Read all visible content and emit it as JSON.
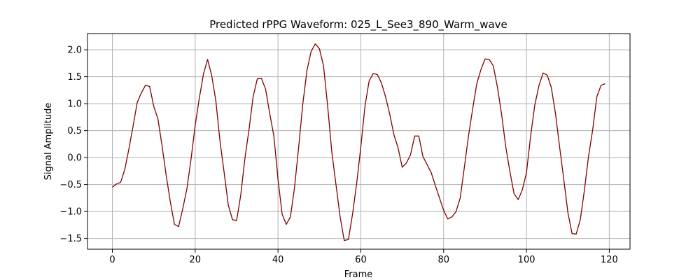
{
  "chart_data": {
    "type": "line",
    "title": "Predicted rPPG Waveform: 025_L_See3_890_Warm_wave",
    "xlabel": "Frame",
    "ylabel": "Signal Amplitude",
    "xlim": [
      -6,
      125
    ],
    "ylim": [
      -1.7,
      2.3
    ],
    "xticks": [
      0,
      20,
      40,
      60,
      80,
      100,
      120
    ],
    "yticks": [
      -1.5,
      -1.0,
      -0.5,
      0.0,
      0.5,
      1.0,
      1.5,
      2.0
    ],
    "xtick_labels": [
      "0",
      "20",
      "40",
      "60",
      "80",
      "100",
      "120"
    ],
    "ytick_labels": [
      "−1.5",
      "−1.0",
      "−0.5",
      "0.0",
      "0.5",
      "1.0",
      "1.5",
      "2.0"
    ],
    "grid": true,
    "line_color": "#800000",
    "series": [
      {
        "name": "",
        "x": [
          0,
          1,
          2,
          3,
          4,
          5,
          6,
          7,
          8,
          9,
          10,
          11,
          12,
          13,
          14,
          15,
          16,
          17,
          18,
          19,
          20,
          21,
          22,
          23,
          24,
          25,
          26,
          27,
          28,
          29,
          30,
          31,
          32,
          33,
          34,
          35,
          36,
          37,
          38,
          39,
          40,
          41,
          42,
          43,
          44,
          45,
          46,
          47,
          48,
          49,
          50,
          51,
          52,
          53,
          54,
          55,
          56,
          57,
          58,
          59,
          60,
          61,
          62,
          63,
          64,
          65,
          66,
          67,
          68,
          69,
          70,
          71,
          72,
          73,
          74,
          75,
          76,
          77,
          78,
          79,
          80,
          81,
          82,
          83,
          84,
          85,
          86,
          87,
          88,
          89,
          90,
          91,
          92,
          93,
          94,
          95,
          96,
          97,
          98,
          99,
          100,
          101,
          102,
          103,
          104,
          105,
          106,
          107,
          108,
          109,
          110,
          111,
          112,
          113,
          114,
          115,
          116,
          117,
          118,
          119
        ],
        "values": [
          -0.55,
          -0.49,
          -0.46,
          -0.22,
          0.16,
          0.58,
          1.02,
          1.2,
          1.34,
          1.32,
          0.95,
          0.72,
          0.22,
          -0.33,
          -0.82,
          -1.24,
          -1.28,
          -0.95,
          -0.58,
          -0.03,
          0.6,
          1.1,
          1.55,
          1.82,
          1.52,
          1.05,
          0.3,
          -0.28,
          -0.88,
          -1.15,
          -1.17,
          -0.7,
          -0.02,
          0.52,
          1.13,
          1.46,
          1.47,
          1.27,
          0.82,
          0.4,
          -0.4,
          -1.05,
          -1.24,
          -1.1,
          -0.55,
          0.2,
          1.0,
          1.62,
          1.97,
          2.11,
          2.02,
          1.7,
          0.95,
          0.1,
          -0.5,
          -1.1,
          -1.54,
          -1.52,
          -1.05,
          -0.48,
          0.2,
          0.95,
          1.42,
          1.56,
          1.54,
          1.38,
          1.12,
          0.8,
          0.42,
          0.18,
          -0.18,
          -0.1,
          0.05,
          0.4,
          0.4,
          0.02,
          -0.13,
          -0.28,
          -0.52,
          -0.75,
          -0.98,
          -1.14,
          -1.1,
          -1.0,
          -0.75,
          -0.18,
          0.4,
          0.9,
          1.37,
          1.63,
          1.83,
          1.82,
          1.7,
          1.3,
          0.8,
          0.2,
          -0.26,
          -0.67,
          -0.78,
          -0.6,
          -0.28,
          0.4,
          0.97,
          1.33,
          1.57,
          1.53,
          1.3,
          0.82,
          0.2,
          -0.4,
          -1.02,
          -1.41,
          -1.42,
          -1.15,
          -0.6,
          0.03,
          0.52,
          1.13,
          1.34,
          1.37
        ]
      }
    ]
  }
}
